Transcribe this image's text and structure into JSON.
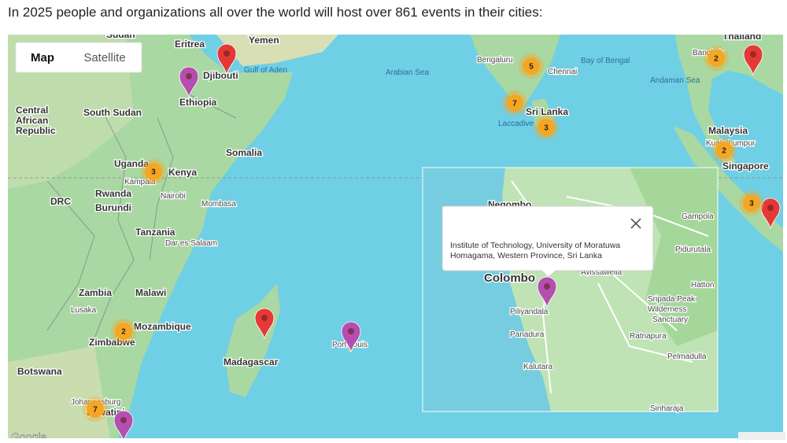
{
  "header": {
    "text": "In 2025 people and organizations all over the world will host over 861 events in their cities:"
  },
  "map_controls": {
    "map": "Map",
    "satellite": "Satellite"
  },
  "places": [
    "Sudan",
    "Eritrea",
    "Yemen",
    "Djibouti",
    "Gulf of Aden",
    "Ethiopia",
    "Central",
    "African",
    "Republic",
    "South Sudan",
    "Somalia",
    "Uganda",
    "Kampala",
    "Kenya",
    "Nairobi",
    "Rwanda",
    "Burundi",
    "DRC",
    "Mombasa",
    "Tanzania",
    "Dar es Salaam",
    "Zambia",
    "Malawi",
    "Lusaka",
    "Mozambique",
    "Zimbabwe",
    "Botswana",
    "Johannesburg",
    "Eswatini",
    "Madagascar",
    "Port Louis",
    "Arabian Sea",
    "Bengaluru",
    "Chennai",
    "Bay of Bengal",
    "Sri Lanka",
    "Laccadive",
    "Andaman Sea",
    "Bangkok",
    "Thailand",
    "Malaysia",
    "Kuala Lumpur",
    "Singapore",
    "Negombo",
    "Colombo",
    "Piliyandala",
    "Panadura",
    "Kalutara",
    "Avissawella",
    "Gampola",
    "Pidurutala",
    "Hatton",
    "Sripada Peak",
    "Wilderness",
    "Sanctuary",
    "Ratnapura",
    "Pelmadulla",
    "Sinharaja"
  ],
  "clusters": [
    5,
    2,
    7,
    3,
    3,
    2,
    3,
    2,
    7
  ],
  "popup": {
    "lines": [
      "Institute of Technology, University of Moratuwa",
      "Homagama, Western Province, Sri Lanka"
    ]
  },
  "attribution": "Google"
}
